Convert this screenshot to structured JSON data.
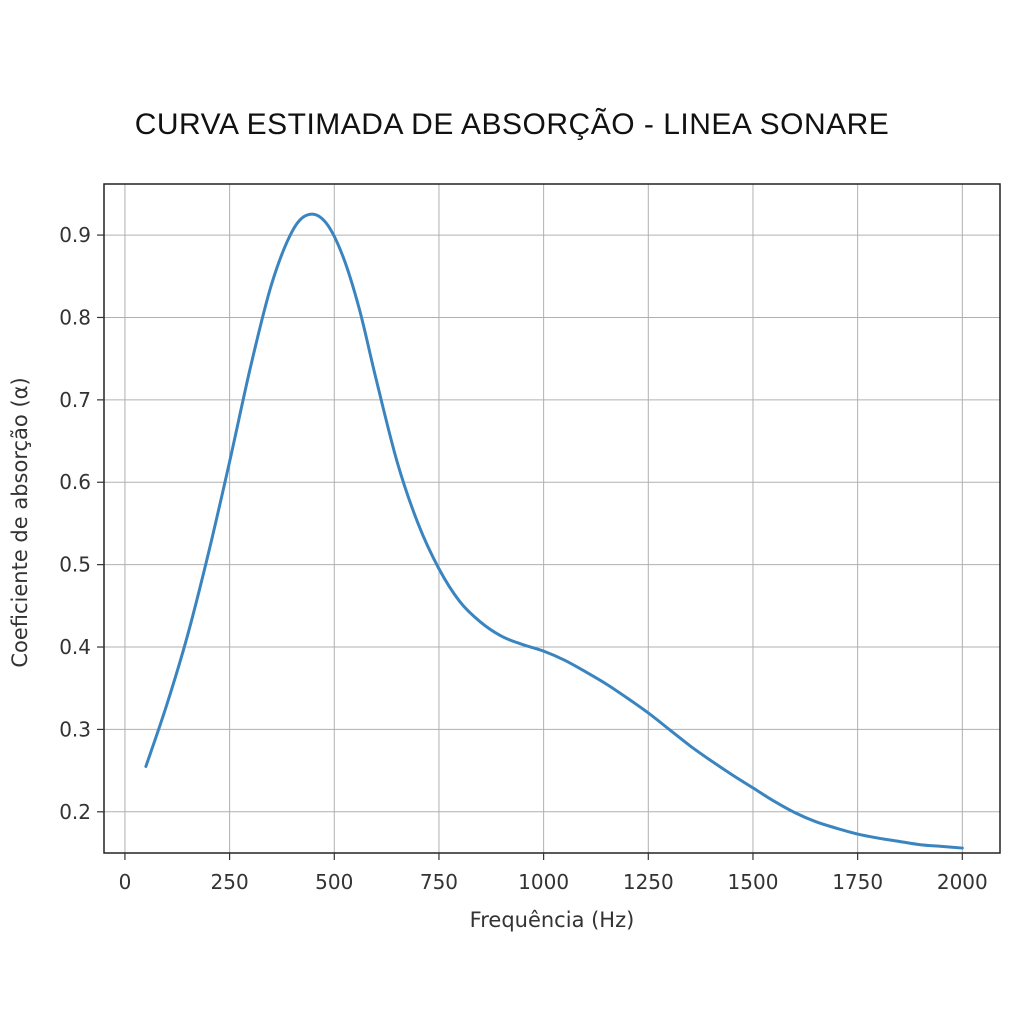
{
  "page": {
    "title": "CURVA ESTIMADA DE ABSORÇÃO - LINEA SONARE"
  },
  "chart_data": {
    "type": "line",
    "title": "CURVA ESTIMADA DE ABSORÇÃO - LINEA SONARE",
    "xlabel": "Frequência (Hz)",
    "ylabel": "Coeficiente de absorção (α)",
    "xlim": [
      -50,
      2090
    ],
    "ylim": [
      0.15,
      0.962
    ],
    "xticks": [
      0,
      250,
      500,
      750,
      1000,
      1250,
      1500,
      1750,
      2000
    ],
    "yticks": [
      0.2,
      0.3,
      0.4,
      0.5,
      0.6,
      0.7,
      0.8,
      0.9
    ],
    "grid": true,
    "series": [
      {
        "color": "#3a85c0",
        "x": [
          50,
          100,
          150,
          200,
          250,
          300,
          350,
          400,
          440,
          480,
          520,
          560,
          600,
          650,
          700,
          750,
          800,
          850,
          900,
          950,
          1000,
          1050,
          1100,
          1150,
          1200,
          1250,
          1300,
          1350,
          1400,
          1450,
          1500,
          1550,
          1600,
          1650,
          1700,
          1750,
          1800,
          1850,
          1900,
          1950,
          2000
        ],
        "y": [
          0.255,
          0.33,
          0.415,
          0.515,
          0.625,
          0.74,
          0.84,
          0.905,
          0.925,
          0.915,
          0.875,
          0.81,
          0.725,
          0.625,
          0.55,
          0.495,
          0.455,
          0.43,
          0.413,
          0.403,
          0.395,
          0.384,
          0.37,
          0.355,
          0.338,
          0.32,
          0.3,
          0.28,
          0.262,
          0.245,
          0.229,
          0.213,
          0.199,
          0.188,
          0.18,
          0.173,
          0.168,
          0.164,
          0.16,
          0.158,
          0.156
        ]
      }
    ]
  }
}
